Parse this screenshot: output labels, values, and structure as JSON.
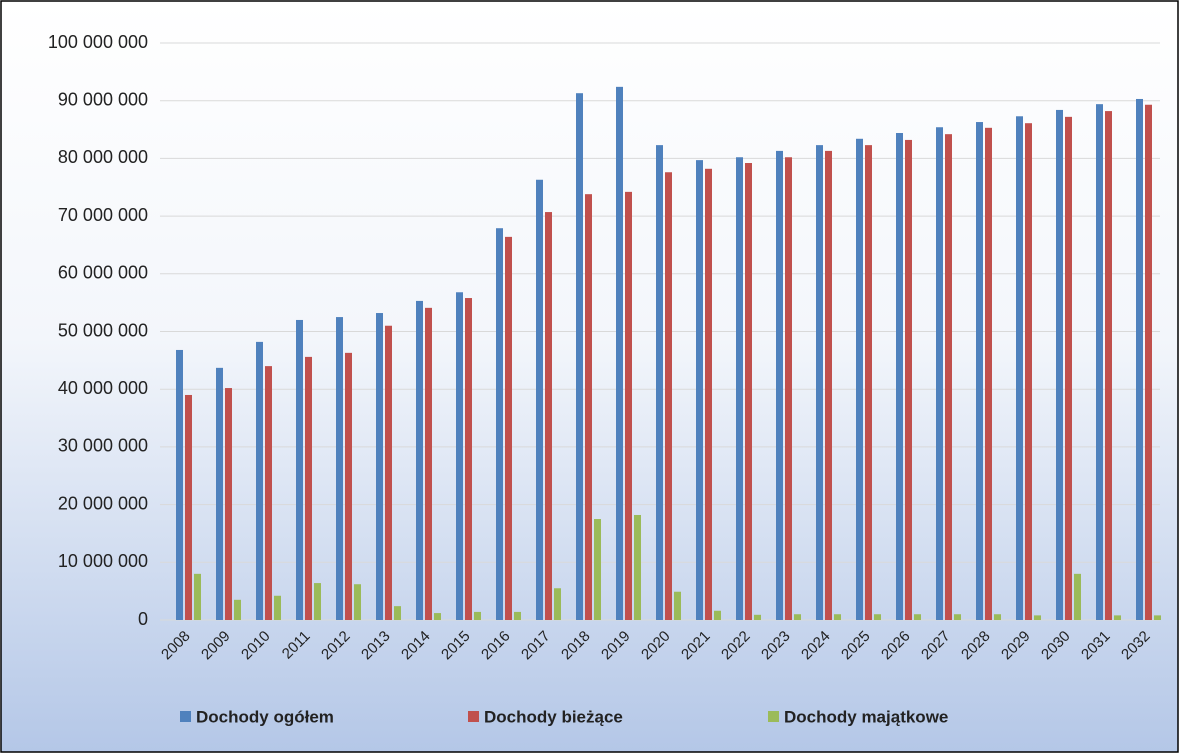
{
  "chart_data": {
    "type": "bar",
    "categories": [
      "2008",
      "2009",
      "2010",
      "2011",
      "2012",
      "2013",
      "2014",
      "2015",
      "2016",
      "2017",
      "2018",
      "2019",
      "2020",
      "2021",
      "2022",
      "2023",
      "2024",
      "2025",
      "2026",
      "2027",
      "2028",
      "2029",
      "2030",
      "2031",
      "2032"
    ],
    "series": [
      {
        "name": "Dochody ogółem",
        "color": "#4f81bd",
        "values": [
          46800000,
          43700000,
          48200000,
          52000000,
          52500000,
          53200000,
          55300000,
          56800000,
          67900000,
          76300000,
          91300000,
          92400000,
          82300000,
          79700000,
          80200000,
          81300000,
          82300000,
          83400000,
          84400000,
          85400000,
          86300000,
          87300000,
          88400000,
          89400000,
          90300000
        ]
      },
      {
        "name": "Dochody bieżące",
        "color": "#c0504d",
        "values": [
          39000000,
          40200000,
          44000000,
          45600000,
          46300000,
          51000000,
          54100000,
          55800000,
          66400000,
          70700000,
          73800000,
          74200000,
          77600000,
          78200000,
          79200000,
          80200000,
          81300000,
          82300000,
          83200000,
          84200000,
          85300000,
          86100000,
          87200000,
          88200000,
          89300000
        ]
      },
      {
        "name": "Dochody majątkowe",
        "color": "#9bbb59",
        "values": [
          8000000,
          3500000,
          4200000,
          6400000,
          6200000,
          2400000,
          1200000,
          1400000,
          1400000,
          5500000,
          17500000,
          18200000,
          4900000,
          1600000,
          900000,
          1000000,
          1000000,
          1000000,
          1000000,
          1000000,
          1000000,
          800000,
          8000000,
          800000,
          800000
        ]
      }
    ],
    "ylim": [
      0,
      100000000
    ],
    "yticks": [
      {
        "value": 0,
        "label": "0"
      },
      {
        "value": 10000000,
        "label": "10 000 000"
      },
      {
        "value": 20000000,
        "label": "20 000 000"
      },
      {
        "value": 30000000,
        "label": "30 000 000"
      },
      {
        "value": 40000000,
        "label": "40 000 000"
      },
      {
        "value": 50000000,
        "label": "50 000 000"
      },
      {
        "value": 60000000,
        "label": "60 000 000"
      },
      {
        "value": 70000000,
        "label": "70 000 000"
      },
      {
        "value": 80000000,
        "label": "80 000 000"
      },
      {
        "value": 90000000,
        "label": "90 000 000"
      },
      {
        "value": 100000000,
        "label": "100 000 000"
      }
    ],
    "grid": true,
    "legend": "bottom"
  }
}
